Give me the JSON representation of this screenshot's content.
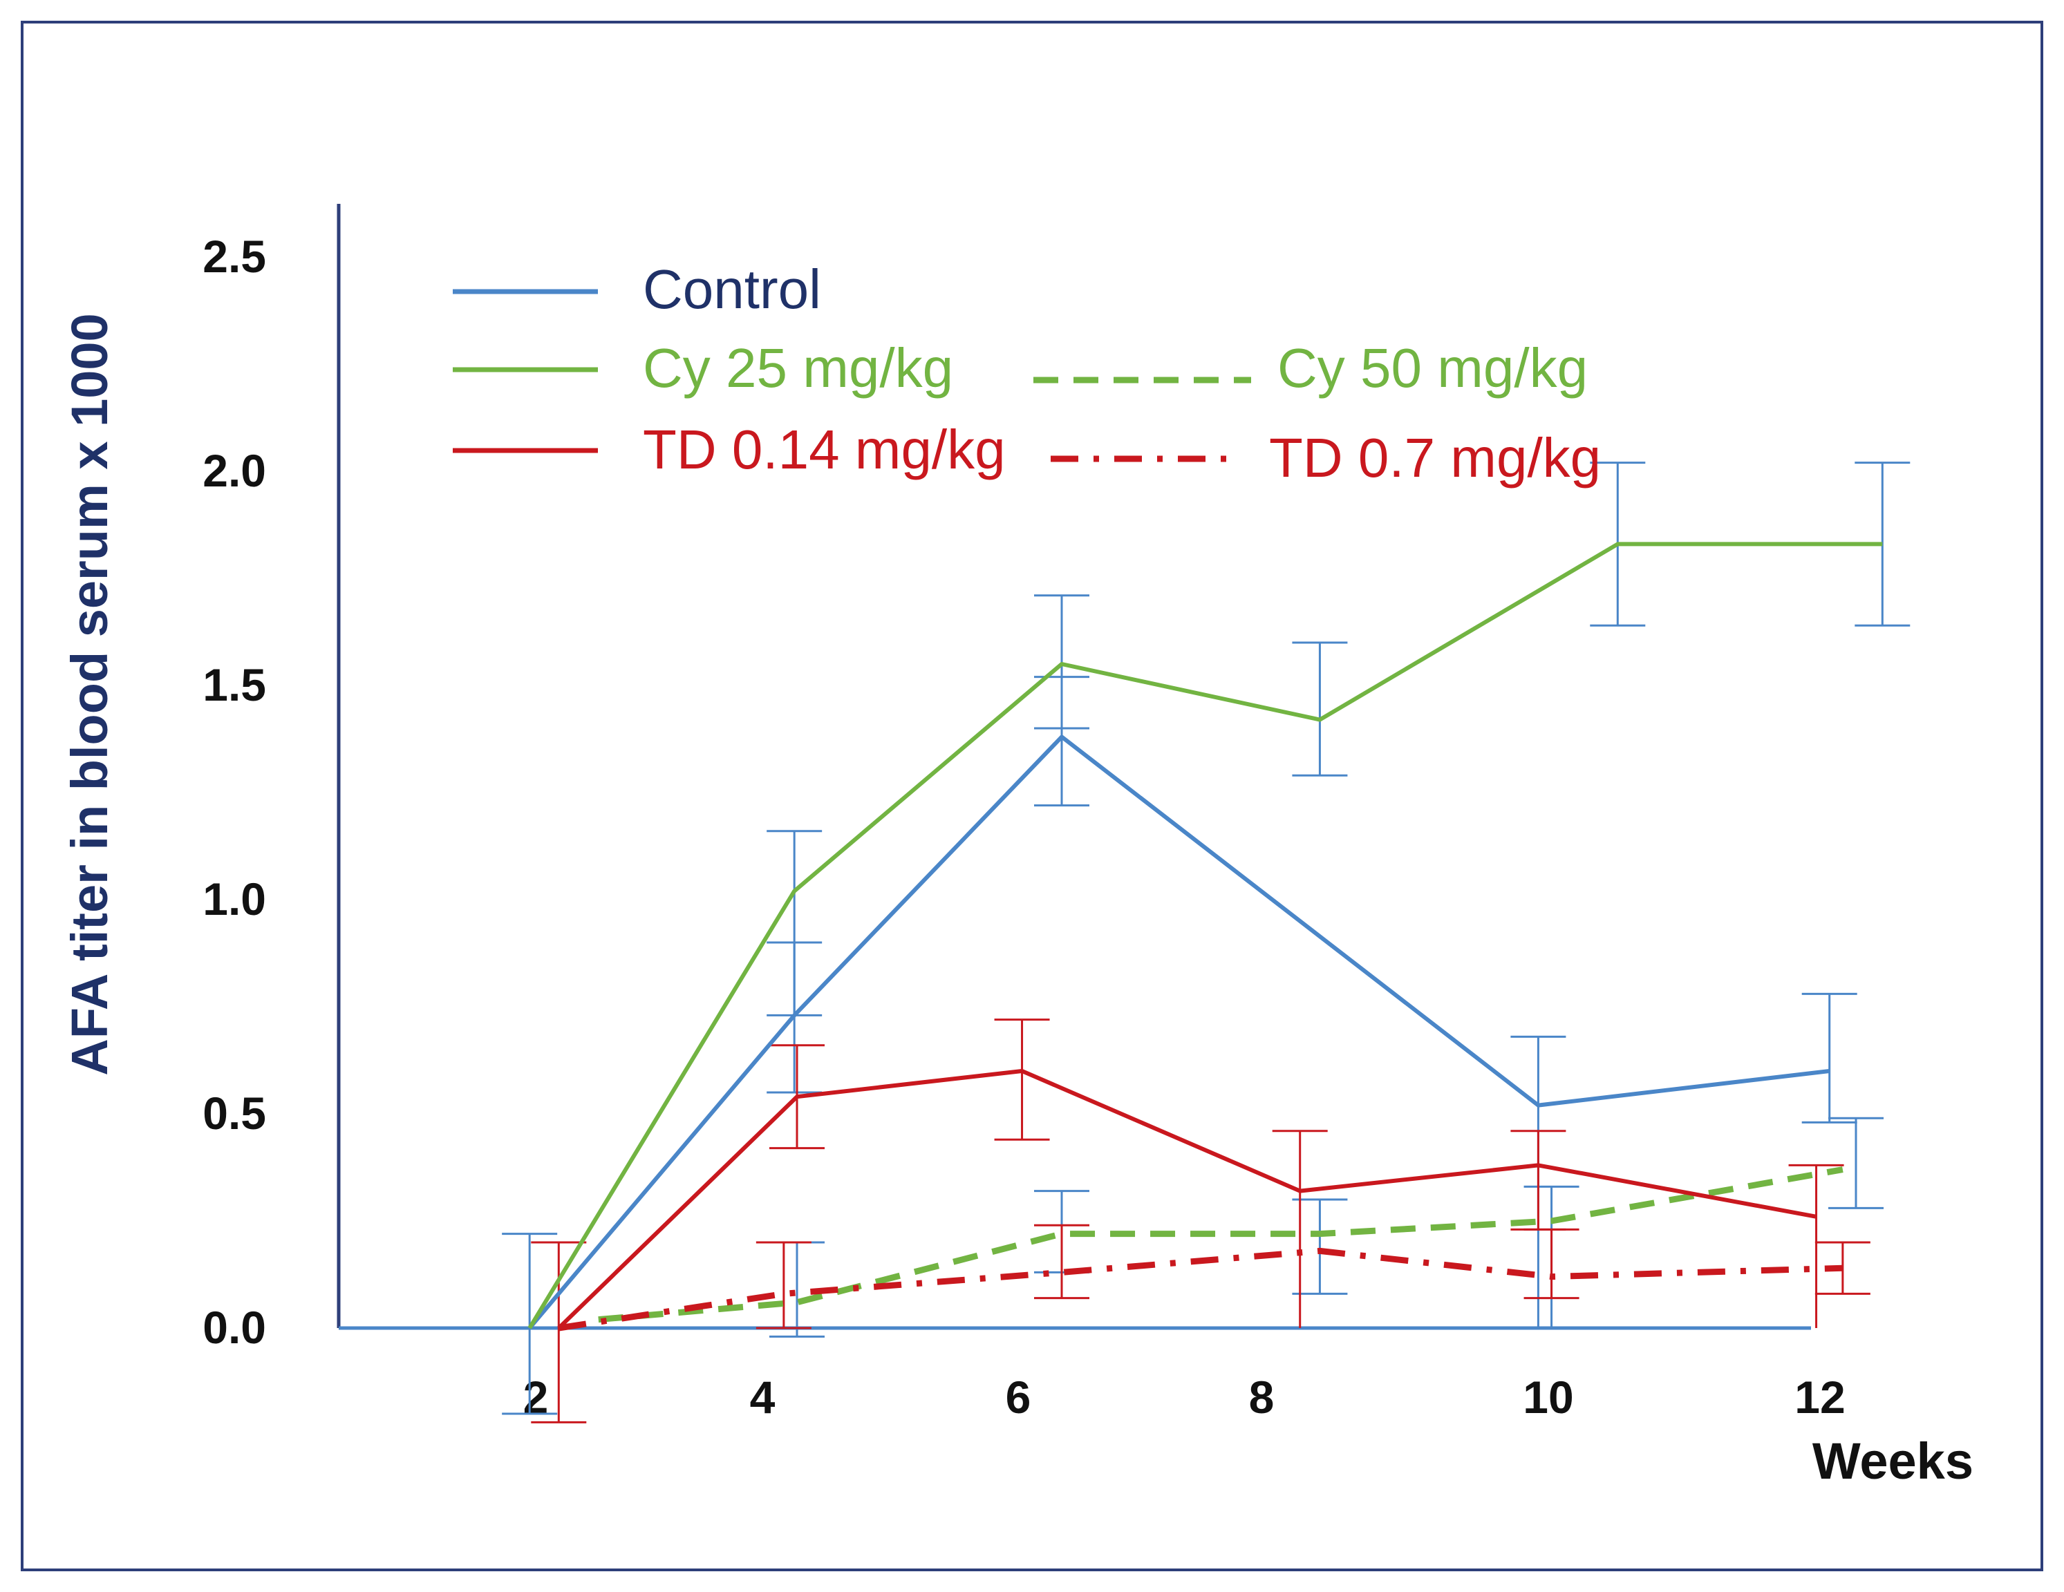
{
  "chart_data": {
    "type": "line",
    "title": "",
    "xlabel": "Weeks",
    "ylabel": "AFA titer in blood serum x 1000",
    "ylim": [
      0,
      2.5
    ],
    "yticks": [
      "0.0",
      "0.5",
      "1.0",
      "1.5",
      "2.0",
      "2.5"
    ],
    "xticks": [
      "2",
      "4",
      "6",
      "8",
      "10",
      "12"
    ],
    "legend": [
      {
        "label": "Control",
        "color": "#4a86c8",
        "style": "solid"
      },
      {
        "label": "Cy 25 mg/kg",
        "color": "#72b442",
        "style": "solid"
      },
      {
        "label": "Cy 50 mg/kg",
        "color": "#72b442",
        "style": "dashed"
      },
      {
        "label": "TD 0.14 mg/kg",
        "color": "#c9181e",
        "style": "solid"
      },
      {
        "label": "TD 0.7 mg/kg",
        "color": "#c9181e",
        "style": "dash-dot"
      }
    ],
    "series": [
      {
        "name": "Control",
        "color": "#4a86c8",
        "style": "solid",
        "points": [
          {
            "x": 1.98,
            "y": 0,
            "lo": -0.2,
            "hi": 0.22
          },
          {
            "x": 3.98,
            "y": 0.73,
            "lo": 0.55,
            "hi": 0.9
          },
          {
            "x": 6.0,
            "y": 1.38,
            "lo": 1.22,
            "hi": 1.52
          },
          {
            "x": 9.6,
            "y": 0.52,
            "lo": null,
            "hi": 0.68
          },
          {
            "x": 11.8,
            "y": 0.6,
            "lo": 0.48,
            "hi": 0.78
          }
        ],
        "errorbar_color": "#4a86c8",
        "extra_errorbars": [
          {
            "x": 9.7,
            "lo": 0.0,
            "hi": 0.33
          },
          {
            "x": 12.0,
            "lo": 0.28,
            "hi": 0.49
          }
        ]
      },
      {
        "name": "Cy 25 mg/kg",
        "color": "#72b442",
        "style": "solid",
        "points": [
          {
            "x": 1.98,
            "y": 0,
            "lo": null,
            "hi": null
          },
          {
            "x": 3.98,
            "y": 1.02,
            "lo": 0.73,
            "hi": 1.16
          },
          {
            "x": 6.0,
            "y": 1.55,
            "lo": 1.4,
            "hi": 1.71
          },
          {
            "x": 7.95,
            "y": 1.42,
            "lo": 1.29,
            "hi": 1.6
          },
          {
            "x": 10.2,
            "y": 1.83,
            "lo": 1.64,
            "hi": 2.02
          },
          {
            "x": 12.2,
            "y": 1.83,
            "lo": 1.64,
            "hi": 2.02
          }
        ],
        "errorbar_color": "#4a86c8"
      },
      {
        "name": "Cy 50 mg/kg",
        "color": "#72b442",
        "style": "dashed",
        "points": [
          {
            "x": 2.5,
            "y": 0.02,
            "lo": null,
            "hi": null
          },
          {
            "x": 4.0,
            "y": 0.06,
            "lo": -0.02,
            "hi": 0.2
          },
          {
            "x": 6.0,
            "y": 0.22,
            "lo": 0.13,
            "hi": 0.32
          },
          {
            "x": 7.95,
            "y": 0.22,
            "lo": 0.08,
            "hi": 0.3
          },
          {
            "x": 9.7,
            "y": 0.25,
            "lo": null,
            "hi": null
          },
          {
            "x": 11.9,
            "y": 0.37,
            "lo": null,
            "hi": null
          }
        ],
        "errorbar_color": "#4a86c8"
      },
      {
        "name": "TD 0.14 mg/kg",
        "color": "#c9181e",
        "style": "solid",
        "points": [
          {
            "x": 2.2,
            "y": 0,
            "lo": -0.22,
            "hi": 0.2
          },
          {
            "x": 4.0,
            "y": 0.54,
            "lo": 0.42,
            "hi": 0.66
          },
          {
            "x": 5.7,
            "y": 0.6,
            "lo": 0.44,
            "hi": 0.72
          },
          {
            "x": 7.8,
            "y": 0.32,
            "lo": null,
            "hi": 0.46
          },
          {
            "x": 9.6,
            "y": 0.38,
            "lo": 0.23,
            "hi": 0.46
          },
          {
            "x": 11.7,
            "y": 0.26,
            "lo": null,
            "hi": 0.38
          }
        ],
        "errorbar_color": "#c9181e"
      },
      {
        "name": "TD 0.7 mg/kg",
        "color": "#c9181e",
        "style": "dash-dot",
        "points": [
          {
            "x": 2.2,
            "y": 0,
            "lo": null,
            "hi": null
          },
          {
            "x": 3.9,
            "y": 0.08,
            "lo": 0.0,
            "hi": 0.2
          },
          {
            "x": 6.0,
            "y": 0.13,
            "lo": 0.07,
            "hi": 0.24
          },
          {
            "x": 7.95,
            "y": 0.18,
            "lo": null,
            "hi": null
          },
          {
            "x": 9.7,
            "y": 0.12,
            "lo": 0.07,
            "hi": 0.23
          },
          {
            "x": 11.9,
            "y": 0.14,
            "lo": 0.08,
            "hi": 0.2
          }
        ],
        "errorbar_color": "#c9181e"
      }
    ]
  }
}
